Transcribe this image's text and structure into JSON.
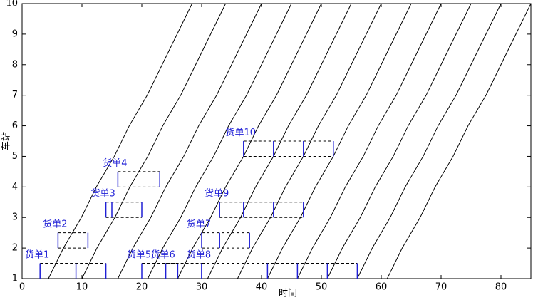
{
  "chart_data": {
    "type": "line",
    "xlabel": "时间",
    "ylabel": "车站",
    "xlim": [
      0,
      85
    ],
    "ylim": [
      1,
      10
    ],
    "xticks": [
      0,
      10,
      20,
      30,
      40,
      50,
      60,
      70,
      80
    ],
    "yticks": [
      1,
      2,
      3,
      4,
      5,
      6,
      7,
      8,
      9,
      10
    ],
    "color": "#000000",
    "waybill_color": "#1f1fd6",
    "series": [
      {
        "x": [
          4.4,
          6.9,
          9.9,
          12.4,
          15.4,
          17.9,
          20.9,
          23.4,
          25.9,
          28.4
        ],
        "values": [
          1,
          2,
          3,
          4,
          5,
          6,
          7,
          8,
          9,
          10
        ]
      },
      {
        "x": [
          10,
          12.5,
          15.5,
          18,
          21,
          23.5,
          26.5,
          29,
          31.5,
          34
        ],
        "values": [
          1,
          2,
          3,
          4,
          5,
          6,
          7,
          8,
          9,
          10
        ]
      },
      {
        "x": [
          16,
          18.5,
          21.5,
          24,
          27,
          29.5,
          32.5,
          35,
          37.5,
          40
        ],
        "values": [
          1,
          2,
          3,
          4,
          5,
          6,
          7,
          8,
          9,
          10
        ]
      },
      {
        "x": [
          21,
          23.5,
          26.5,
          29,
          32,
          34.5,
          37.5,
          40,
          42.5,
          45
        ],
        "values": [
          1,
          2,
          3,
          4,
          5,
          6,
          7,
          8,
          9,
          10
        ]
      },
      {
        "x": [
          26,
          28.5,
          31.5,
          34,
          37,
          39.5,
          42.5,
          45,
          47.5,
          50
        ],
        "values": [
          1,
          2,
          3,
          4,
          5,
          6,
          7,
          8,
          9,
          10
        ]
      },
      {
        "x": [
          31,
          33.5,
          36.5,
          39,
          42,
          44.5,
          47.5,
          50,
          52.5,
          55
        ],
        "values": [
          1,
          2,
          3,
          4,
          5,
          6,
          7,
          8,
          9,
          10
        ]
      },
      {
        "x": [
          36,
          38.5,
          41.5,
          44,
          47,
          49.5,
          52.5,
          55,
          57.5,
          60
        ],
        "values": [
          1,
          2,
          3,
          4,
          5,
          6,
          7,
          8,
          9,
          10
        ]
      },
      {
        "x": [
          41,
          43.5,
          46.5,
          49,
          52,
          54.5,
          57.5,
          60,
          62.5,
          65
        ],
        "values": [
          1,
          2,
          3,
          4,
          5,
          6,
          7,
          8,
          9,
          10
        ]
      },
      {
        "x": [
          46,
          48.5,
          51.5,
          54,
          57,
          59.5,
          62.5,
          65,
          67.5,
          70
        ],
        "values": [
          1,
          2,
          3,
          4,
          5,
          6,
          7,
          8,
          9,
          10
        ]
      },
      {
        "x": [
          51,
          53.5,
          56.5,
          59,
          62,
          64.5,
          67.5,
          70,
          72.5,
          75
        ],
        "values": [
          1,
          2,
          3,
          4,
          5,
          6,
          7,
          8,
          9,
          10
        ]
      },
      {
        "x": [
          56,
          58.5,
          61.5,
          64,
          67,
          69.5,
          72.5,
          75,
          77.5,
          80
        ],
        "values": [
          1,
          2,
          3,
          4,
          5,
          6,
          7,
          8,
          9,
          10
        ]
      },
      {
        "x": [
          61,
          63.5,
          66.5,
          69,
          72,
          74.5,
          77.5,
          80,
          82.5,
          85
        ],
        "values": [
          1,
          2,
          3,
          4,
          5,
          6,
          7,
          8,
          9,
          10
        ]
      }
    ],
    "waybills": [
      {
        "label": "货单1",
        "y": 1,
        "x": [
          3,
          9,
          14
        ]
      },
      {
        "label": "货单2",
        "y": 2,
        "x": [
          6,
          11
        ]
      },
      {
        "label": "货单3",
        "y": 3,
        "x": [
          14,
          15,
          20
        ]
      },
      {
        "label": "货单4",
        "y": 4,
        "x": [
          16,
          23
        ]
      },
      {
        "label": "货单5",
        "y": 1,
        "x": [
          20,
          26
        ]
      },
      {
        "label": "货单6",
        "y": 1,
        "x": [
          24,
          30
        ]
      },
      {
        "label": "货单7",
        "y": 2,
        "x": [
          30,
          33,
          38
        ]
      },
      {
        "label": "货单8",
        "y": 1,
        "x": [
          30,
          41,
          46,
          51,
          56
        ]
      },
      {
        "label": "货单9",
        "y": 3,
        "x": [
          33,
          37,
          42,
          47
        ]
      },
      {
        "label": "货单10",
        "y": 5,
        "x": [
          37,
          42,
          47,
          52
        ]
      }
    ]
  }
}
